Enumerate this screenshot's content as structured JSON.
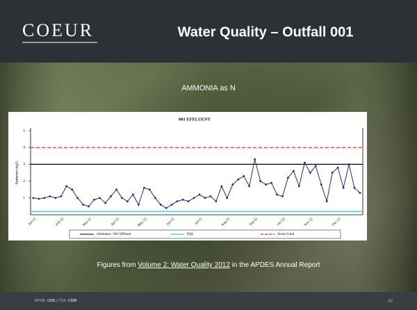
{
  "header": {
    "logo": "COEUR",
    "title": "Water Quality – Outfall 001"
  },
  "subtitle": "AMMONIA as N",
  "caption": {
    "before": "Figures from ",
    "link": "Volume 2: Water Quality 2012",
    "after": " in the APDES Annual Report"
  },
  "footer": {
    "exchange1": "NYSE:",
    "ticker1": "CDE",
    "separator": "|",
    "exchange2": "TSX:",
    "ticker2": "CDM",
    "page": "62"
  },
  "chart_data": {
    "type": "line",
    "title": "001 EFFLUENT",
    "y_label": "Ammonia mg/L",
    "categories": [
      "Jan-12",
      null,
      null,
      null,
      null,
      "Feb-12",
      null,
      null,
      null,
      null,
      "Mar-12",
      null,
      null,
      null,
      null,
      "Apr-12",
      null,
      null,
      null,
      null,
      "May-12",
      null,
      null,
      null,
      null,
      "Jun-12",
      null,
      null,
      null,
      null,
      "Jul-12",
      null,
      null,
      null,
      null,
      "Aug-12",
      null,
      null,
      null,
      null,
      "Sep-12",
      null,
      null,
      null,
      null,
      "Oct-12",
      null,
      null,
      null,
      null,
      "Nov-12",
      null,
      null,
      null,
      null,
      "Dec-12",
      null,
      null,
      null,
      null
    ],
    "series": [
      {
        "name": "Ammonia - 001 Effluent",
        "color": "#1f2a7a",
        "values": [
          1.0,
          0.95,
          1.0,
          1.1,
          1.0,
          1.1,
          1.7,
          1.5,
          1.0,
          0.6,
          0.5,
          0.9,
          1.0,
          0.7,
          1.1,
          1.5,
          1.0,
          0.8,
          1.2,
          0.6,
          1.6,
          1.5,
          1.0,
          0.6,
          0.4,
          0.6,
          0.8,
          0.9,
          0.8,
          1.0,
          1.2,
          1.0,
          1.1,
          0.8,
          1.7,
          1.0,
          1.8,
          2.1,
          2.3,
          1.7,
          3.3,
          2.0,
          1.8,
          1.9,
          1.2,
          1.1,
          2.2,
          2.6,
          1.7,
          3.1,
          2.5,
          2.9,
          1.8,
          0.8,
          2.5,
          2.8,
          1.6,
          3.0,
          1.6,
          1.3
        ]
      }
    ],
    "reference_lines": [
      {
        "name": "PQL",
        "value": 0.2,
        "color": "#33c6e0",
        "dashed": false
      },
      {
        "name": "Acute Limit",
        "value": 4,
        "color": "#d9261c",
        "dashed": true
      },
      {
        "value": 3,
        "color": "#000000",
        "dashed": false
      }
    ],
    "ylim": [
      0,
      5
    ],
    "yticks": [
      1,
      2,
      3,
      4,
      5
    ]
  }
}
